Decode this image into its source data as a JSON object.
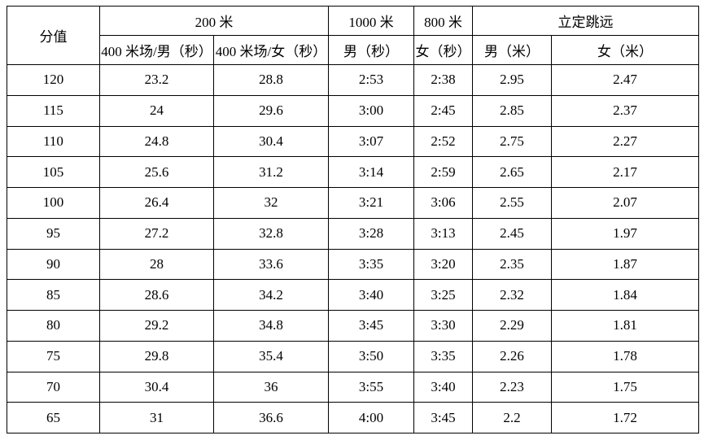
{
  "colors": {
    "background": "#ffffff",
    "border": "#000000",
    "text": "#000000"
  },
  "table": {
    "score_header": "分值",
    "groups": [
      {
        "label": "200 米",
        "colspan": 2
      },
      {
        "label": "1000 米",
        "colspan": 1
      },
      {
        "label": "800 米",
        "colspan": 1
      },
      {
        "label": "立定跳远",
        "colspan": 2
      }
    ],
    "sub_headers": [
      "400 米场/男（秒）",
      "400 米场/女（秒）",
      "男（秒）",
      "女（秒）",
      "男（米）",
      "女（米）"
    ],
    "rows": [
      [
        "120",
        "23.2",
        "28.8",
        "2:53",
        "2:38",
        "2.95",
        "2.47"
      ],
      [
        "115",
        "24",
        "29.6",
        "3:00",
        "2:45",
        "2.85",
        "2.37"
      ],
      [
        "110",
        "24.8",
        "30.4",
        "3:07",
        "2:52",
        "2.75",
        "2.27"
      ],
      [
        "105",
        "25.6",
        "31.2",
        "3:14",
        "2:59",
        "2.65",
        "2.17"
      ],
      [
        "100",
        "26.4",
        "32",
        "3:21",
        "3:06",
        "2.55",
        "2.07"
      ],
      [
        "95",
        "27.2",
        "32.8",
        "3:28",
        "3:13",
        "2.45",
        "1.97"
      ],
      [
        "90",
        "28",
        "33.6",
        "3:35",
        "3:20",
        "2.35",
        "1.87"
      ],
      [
        "85",
        "28.6",
        "34.2",
        "3:40",
        "3:25",
        "2.32",
        "1.84"
      ],
      [
        "80",
        "29.2",
        "34.8",
        "3:45",
        "3:30",
        "2.29",
        "1.81"
      ],
      [
        "75",
        "29.8",
        "35.4",
        "3:50",
        "3:35",
        "2.26",
        "1.78"
      ],
      [
        "70",
        "30.4",
        "36",
        "3:55",
        "3:40",
        "2.23",
        "1.75"
      ],
      [
        "65",
        "31",
        "36.6",
        "4:00",
        "3:45",
        "2.2",
        "1.72"
      ]
    ]
  }
}
